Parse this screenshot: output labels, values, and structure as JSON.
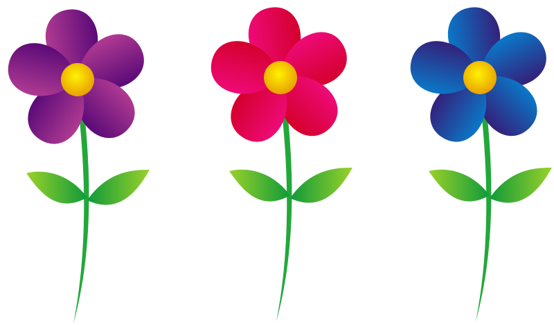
{
  "image": {
    "subject": "clip-art-flowers",
    "flowers": [
      {
        "name": "purple-flower",
        "petal_colors": [
          "#b03a92",
          "#5a0a78"
        ]
      },
      {
        "name": "pink-flower",
        "petal_colors": [
          "#ee0a78",
          "#d4002c"
        ]
      },
      {
        "name": "blue-flower",
        "petal_colors": [
          "#0a78c8",
          "#34207a"
        ]
      }
    ],
    "center_colors": [
      "#fff200",
      "#e8a000"
    ],
    "stem_color": "#22a83a",
    "leaf_colors": [
      "#9ad12a",
      "#0f9a3a"
    ]
  }
}
